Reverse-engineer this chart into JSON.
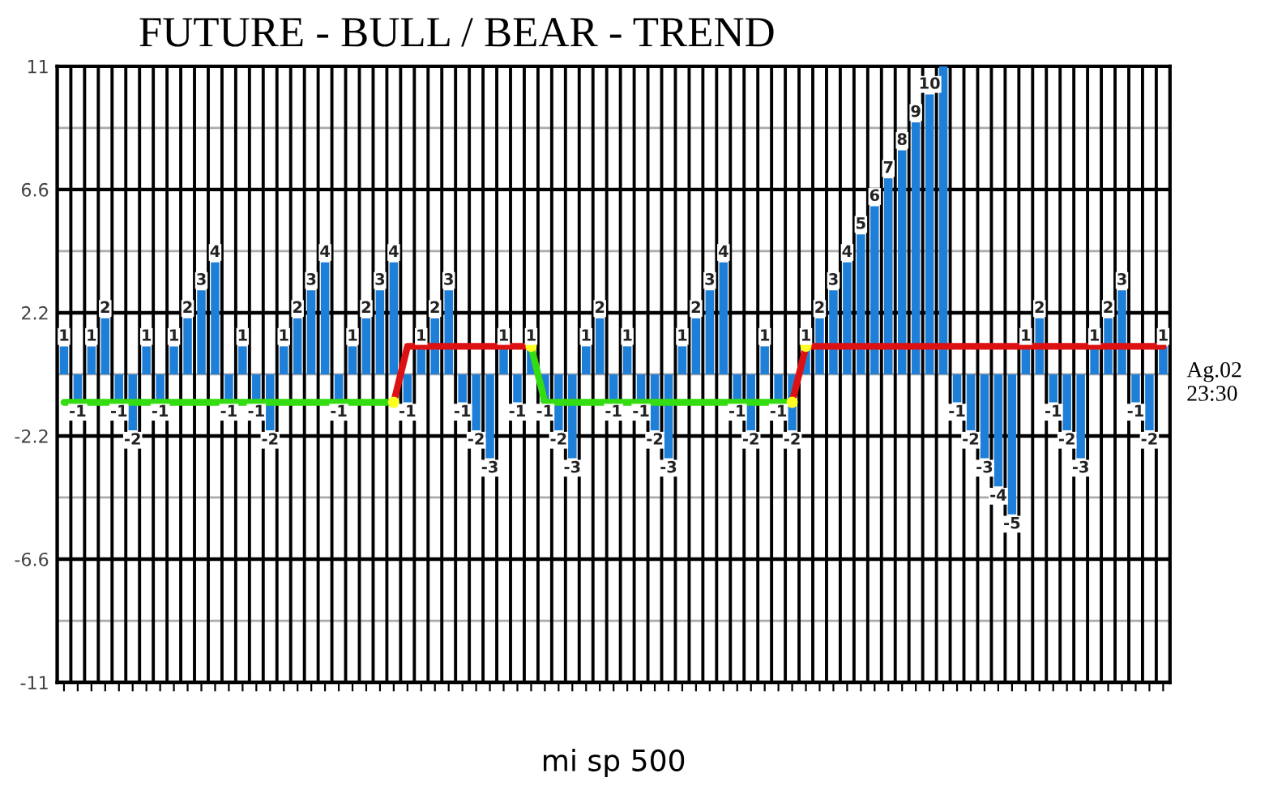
{
  "chart_data": {
    "type": "bar",
    "title": "FUTURE - BULL / BEAR - TREND",
    "xlabel": "mi sp 500",
    "annotations": [
      "Ag.02\n23:30"
    ],
    "categories": [
      null,
      null,
      null,
      null,
      null,
      null,
      null,
      null,
      null,
      null,
      null,
      null,
      null,
      null,
      null,
      null,
      null,
      null,
      null,
      null,
      null,
      null,
      null,
      null,
      null,
      null,
      null,
      null,
      null,
      null,
      null,
      null,
      null,
      null,
      null,
      null,
      null,
      null,
      null,
      null,
      null,
      null,
      null,
      null,
      null,
      null,
      null,
      null,
      null,
      null,
      null,
      null,
      null,
      null,
      null,
      null,
      null,
      null,
      null,
      null,
      null,
      null,
      null,
      null,
      null,
      null,
      null,
      null,
      null,
      null,
      null,
      null,
      null,
      null,
      null,
      null,
      null,
      null,
      null,
      null,
      null
    ],
    "ylim": [
      -11,
      11
    ],
    "yticks": [
      -11,
      {
        "value": -8.8,
        "label": null
      },
      -6.6,
      {
        "value": -4.4,
        "label": null
      },
      -2.2,
      {
        "value": 0,
        "label": null
      },
      2.2,
      {
        "value": 4.4,
        "label": null
      },
      6.6,
      {
        "value": 8.8,
        "label": null
      },
      11
    ],
    "grid": true,
    "series": [
      {
        "type": "bar",
        "color": "#1e7fd8",
        "values": [
          1,
          -1,
          1,
          2,
          -1,
          -2,
          1,
          -1,
          1,
          2,
          3,
          4,
          -1,
          1,
          -1,
          -2,
          1,
          2,
          3,
          4,
          -1,
          1,
          2,
          3,
          4,
          -1,
          1,
          2,
          3,
          -1,
          -2,
          -3,
          1,
          -1,
          1,
          -1,
          -2,
          -3,
          1,
          2,
          -1,
          1,
          -1,
          -2,
          -3,
          1,
          2,
          3,
          4,
          -1,
          -2,
          1,
          -1,
          -2,
          1,
          2,
          3,
          4,
          5,
          6,
          7,
          8,
          9,
          10,
          11,
          -1,
          -2,
          -3,
          -4,
          -5,
          1,
          2,
          -1,
          -2,
          -3,
          1,
          2,
          3,
          -1,
          -2,
          1
        ],
        "value_labels": [
          "1",
          "-1",
          "1",
          "2",
          "-1",
          "-2",
          "1",
          "-1",
          "1",
          "2",
          "3",
          "4",
          "-1",
          "1",
          "-1",
          "-2",
          "1",
          "2",
          "3",
          "4",
          "-1",
          "1",
          "2",
          "3",
          "4",
          "-1",
          "1",
          "2",
          "3",
          "-1",
          "-2",
          "-3",
          "1",
          "-1",
          "1",
          "-1",
          "-2",
          "-3",
          "1",
          "2",
          "-1",
          "1",
          "-1",
          "-2",
          "-3",
          "1",
          "2",
          "3",
          "4",
          "-1",
          "-2",
          "1",
          "-1",
          "-2",
          "1",
          "2",
          "3",
          "4",
          "5",
          "6",
          "7",
          "8",
          "9",
          "10",
          null,
          "-1",
          "-2",
          "-3",
          "-4",
          "-5",
          "1",
          "2",
          "-1",
          "-2",
          "-3",
          "1",
          "2",
          "3",
          "-1",
          "-2",
          "1"
        ]
      },
      {
        "type": "line",
        "color": "#33dd11",
        "values": [
          -1,
          -1,
          -1,
          -1,
          -1,
          -1,
          -1,
          -1,
          -1,
          -1,
          -1,
          -1,
          -1,
          -1,
          -1,
          -1,
          -1,
          -1,
          -1,
          -1,
          -1,
          -1,
          -1,
          -1,
          -1,
          null,
          null,
          null,
          null,
          null,
          null,
          null,
          null,
          null,
          1,
          -1,
          -1,
          -1,
          -1,
          -1,
          -1,
          -1,
          -1,
          -1,
          -1,
          -1,
          -1,
          -1,
          -1,
          -1,
          -1,
          -1,
          -1,
          -1,
          null,
          null,
          null,
          null,
          null,
          null,
          null,
          null,
          null,
          null,
          null,
          null,
          null,
          null,
          null,
          null,
          null,
          null,
          null,
          null,
          null,
          null,
          null,
          null,
          null,
          null,
          null
        ]
      },
      {
        "type": "line",
        "color": "#dd1111",
        "values": [
          null,
          null,
          null,
          null,
          null,
          null,
          null,
          null,
          null,
          null,
          null,
          null,
          null,
          null,
          null,
          null,
          null,
          null,
          null,
          null,
          null,
          null,
          null,
          null,
          -1,
          1,
          1,
          1,
          1,
          1,
          1,
          1,
          1,
          1,
          1,
          null,
          null,
          null,
          null,
          null,
          null,
          null,
          null,
          null,
          null,
          null,
          null,
          null,
          null,
          null,
          null,
          null,
          null,
          -1,
          1,
          1,
          1,
          1,
          1,
          1,
          1,
          1,
          1,
          1,
          1,
          1,
          1,
          1,
          1,
          1,
          1,
          1,
          1,
          1,
          1,
          1,
          1,
          1,
          1,
          1,
          1
        ]
      },
      {
        "type": "scatter",
        "color": "#ffff22",
        "values": [
          null,
          null,
          null,
          null,
          null,
          null,
          null,
          null,
          null,
          null,
          null,
          null,
          null,
          null,
          null,
          null,
          null,
          null,
          null,
          null,
          null,
          null,
          null,
          null,
          -1,
          null,
          null,
          null,
          null,
          null,
          null,
          null,
          null,
          null,
          1,
          null,
          null,
          null,
          null,
          null,
          null,
          null,
          null,
          null,
          null,
          null,
          null,
          null,
          null,
          null,
          null,
          null,
          null,
          -1,
          1,
          null,
          null,
          null,
          null,
          null,
          null,
          null,
          null,
          null,
          null,
          null,
          null,
          null,
          null,
          null,
          null,
          null,
          null,
          null,
          null,
          null,
          null,
          null,
          null,
          null,
          null
        ]
      }
    ]
  }
}
